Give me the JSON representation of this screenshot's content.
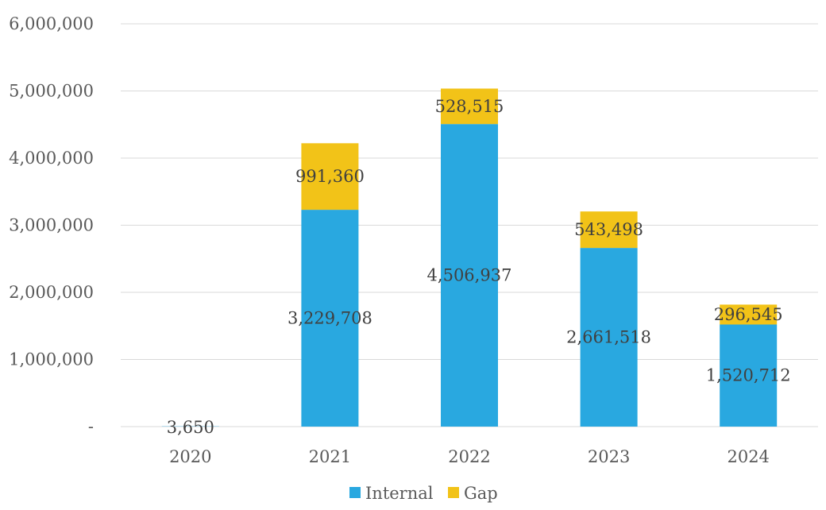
{
  "chart_data": {
    "type": "bar",
    "stacked": true,
    "categories": [
      "2020",
      "2021",
      "2022",
      "2023",
      "2024"
    ],
    "series": [
      {
        "name": "Internal",
        "color": "#29a8e0",
        "values": [
          3650,
          3229708,
          4506937,
          2661518,
          1520712
        ],
        "labels": [
          "3,650",
          "3,229,708",
          "4,506,937",
          "2,661,518",
          "1,520,712"
        ]
      },
      {
        "name": "Gap",
        "color": "#f2c318",
        "values": [
          0,
          991360,
          528515,
          543498,
          296545
        ],
        "labels": [
          "",
          "991,360",
          "528,515",
          "543,498",
          "296,545"
        ]
      }
    ],
    "ylim": [
      0,
      6000000
    ],
    "yticks": [
      0,
      1000000,
      2000000,
      3000000,
      4000000,
      5000000,
      6000000
    ],
    "ytick_labels": [
      "-",
      "1,000,000",
      "2,000,000",
      "3,000,000",
      "4,000,000",
      "5,000,000",
      "6,000,000"
    ],
    "grid": true,
    "legend_position": "bottom"
  }
}
